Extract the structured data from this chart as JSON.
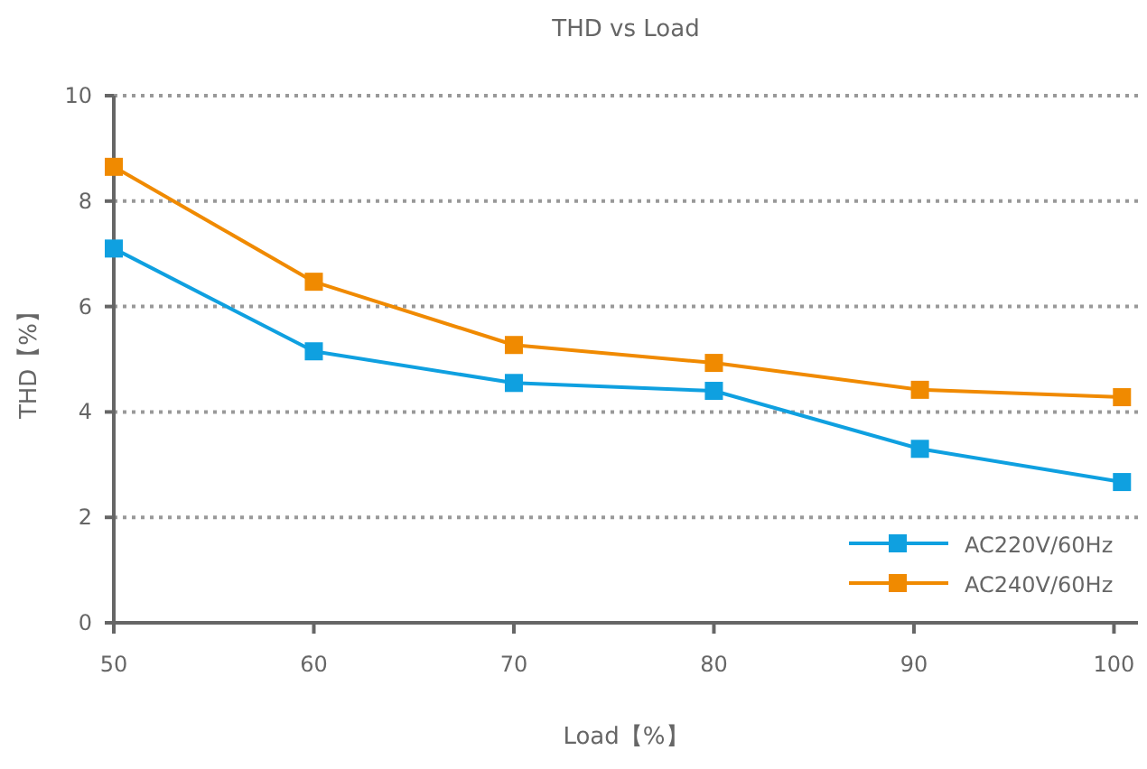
{
  "chart_data": {
    "type": "line",
    "title": "THD vs Load",
    "xlabel": "Load【%】",
    "ylabel": "THD【%】",
    "x": [
      50,
      60,
      70,
      80,
      90.3,
      100.4
    ],
    "series": [
      {
        "name": "AC220V/60Hz",
        "color": "#0fa0e0",
        "values": [
          7.1,
          5.15,
          4.55,
          4.4,
          3.3,
          2.67
        ]
      },
      {
        "name": "AC240V/60Hz",
        "color": "#f08a00",
        "values": [
          8.65,
          6.47,
          5.27,
          4.93,
          4.42,
          4.28
        ]
      }
    ],
    "xlim": [
      50,
      101.2
    ],
    "xticks": [
      50,
      60,
      70,
      80,
      90,
      100
    ],
    "ylim": [
      0,
      10
    ],
    "yticks": [
      0,
      2,
      4,
      6,
      8,
      10
    ],
    "grid": "y",
    "legend": "bottom right",
    "marker": "square",
    "line_style": "solid"
  }
}
